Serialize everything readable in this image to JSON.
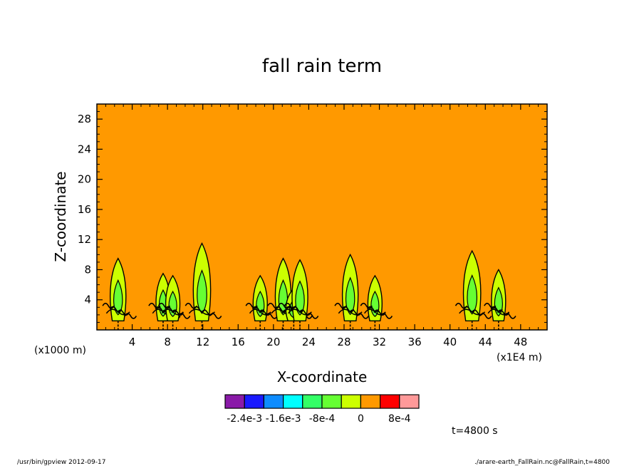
{
  "chart_data": {
    "type": "heatmap",
    "title": "fall rain term",
    "xlabel": "X-coordinate",
    "ylabel": "Z-coordinate",
    "x_unit_label": "(x1000 m)",
    "x_scale_label": "(x1E4 m)",
    "time_label": "t=4800 s",
    "xlim": [
      0,
      51
    ],
    "ylim": [
      0,
      30
    ],
    "x_ticks": [
      4,
      8,
      12,
      16,
      20,
      24,
      28,
      32,
      36,
      40,
      44,
      48
    ],
    "y_ticks": [
      4,
      8,
      12,
      16,
      20,
      24,
      28
    ],
    "background_color": "#ff9900",
    "colorbar": {
      "colors": [
        "#8a1aa8",
        "#1a1aff",
        "#0d8cff",
        "#00ffff",
        "#33ff66",
        "#66ff33",
        "#ccff00",
        "#ff9900",
        "#ff0000",
        "#ff9999"
      ],
      "labels": [
        {
          "text": "-2.4e-3",
          "boundary": 1
        },
        {
          "text": "-1.6e-3",
          "boundary": 3
        },
        {
          "text": "-8e-4",
          "boundary": 5
        },
        {
          "text": "0",
          "boundary": 7
        },
        {
          "text": "8e-4",
          "boundary": 9
        }
      ]
    },
    "cells": [
      {
        "x": 2.4,
        "top": 9.5,
        "w": 0.5
      },
      {
        "x": 7.5,
        "top": 7.5,
        "w": 0.45
      },
      {
        "x": 8.6,
        "top": 7.2,
        "w": 0.45
      },
      {
        "x": 11.9,
        "top": 11.5,
        "w": 0.55
      },
      {
        "x": 18.5,
        "top": 7.2,
        "w": 0.45
      },
      {
        "x": 21.1,
        "top": 9.5,
        "w": 0.5
      },
      {
        "x": 22.3,
        "top": 5.5,
        "w": 0.5
      },
      {
        "x": 23.0,
        "top": 9.3,
        "w": 0.5
      },
      {
        "x": 28.7,
        "top": 10.0,
        "w": 0.5
      },
      {
        "x": 31.5,
        "top": 7.2,
        "w": 0.45
      },
      {
        "x": 42.5,
        "top": 10.5,
        "w": 0.55
      },
      {
        "x": 45.5,
        "top": 8.0,
        "w": 0.45
      }
    ]
  },
  "footer": {
    "left": "/usr/bin/gpview   2012-09-17",
    "right": "./arare-earth_FallRain.nc@FallRain,t=4800"
  }
}
